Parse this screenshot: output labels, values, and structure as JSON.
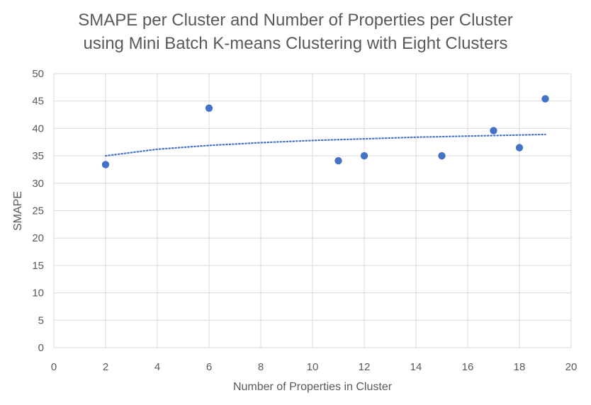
{
  "chart_data": {
    "type": "scatter",
    "title_line1": "SMAPE per Cluster and Number of Properties per Cluster",
    "title_line2": "using  Mini Batch K-means Clustering with Eight Clusters",
    "xlabel": "Number of Properties in Cluster",
    "ylabel": "SMAPE",
    "xlim": [
      0,
      20
    ],
    "ylim": [
      0,
      50
    ],
    "x_ticks": [
      0,
      2,
      4,
      6,
      8,
      10,
      12,
      14,
      16,
      18,
      20
    ],
    "y_ticks": [
      0,
      5,
      10,
      15,
      20,
      25,
      30,
      35,
      40,
      45,
      50
    ],
    "grid": true,
    "series": [
      {
        "points": [
          {
            "x": 2,
            "y": 33.4
          },
          {
            "x": 6,
            "y": 43.7
          },
          {
            "x": 11,
            "y": 34.1
          },
          {
            "x": 12,
            "y": 35.0
          },
          {
            "x": 15,
            "y": 35.0
          },
          {
            "x": 17,
            "y": 39.6
          },
          {
            "x": 18,
            "y": 36.5
          },
          {
            "x": 19,
            "y": 45.4
          }
        ],
        "color": "#4472C4"
      }
    ],
    "trendline": {
      "kind": "logarithmic",
      "style": "dotted",
      "color": "#4472C4",
      "x_range": [
        2,
        19
      ],
      "points": [
        {
          "x": 2,
          "y": 35.0
        },
        {
          "x": 4,
          "y": 36.2
        },
        {
          "x": 6,
          "y": 36.9
        },
        {
          "x": 8,
          "y": 37.4
        },
        {
          "x": 10,
          "y": 37.8
        },
        {
          "x": 12,
          "y": 38.1
        },
        {
          "x": 14,
          "y": 38.4
        },
        {
          "x": 16,
          "y": 38.6
        },
        {
          "x": 18,
          "y": 38.8
        },
        {
          "x": 19,
          "y": 38.9
        }
      ]
    }
  }
}
